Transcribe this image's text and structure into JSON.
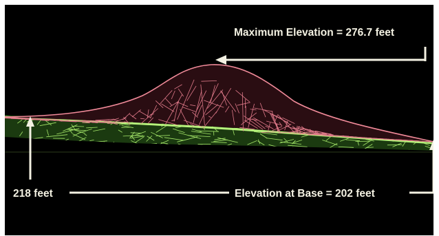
{
  "labels": {
    "max_elevation": "Maximum Elevation = 276.7 feet",
    "side_height": "218 feet",
    "base_elevation": "Elevation at Base = 202 feet"
  },
  "colors": {
    "background": "#000000",
    "mound_mesh": "#e07a8a",
    "ground_mesh": "#a6e86a",
    "annotation": "#f3f1e2"
  }
}
